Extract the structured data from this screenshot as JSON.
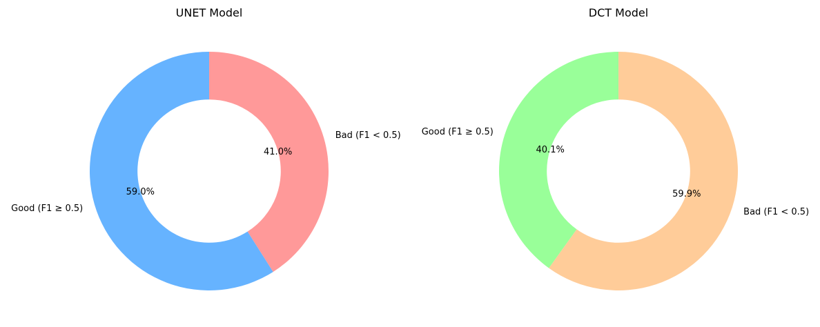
{
  "chart_data": [
    {
      "type": "pie",
      "variant": "donut",
      "title": "UNET Model",
      "start_angle_deg": 90,
      "direction": "clockwise",
      "slices": [
        {
          "label": "Bad (F1 < 0.5)",
          "value": 41.0,
          "pct_label": "41.0%",
          "color": "#ff9999"
        },
        {
          "label": "Good (F1 ≥ 0.5)",
          "value": 59.0,
          "pct_label": "59.0%",
          "color": "#66b3ff"
        }
      ]
    },
    {
      "type": "pie",
      "variant": "donut",
      "title": "DCT Model",
      "start_angle_deg": 90,
      "direction": "clockwise",
      "slices": [
        {
          "label": "Bad (F1 < 0.5)",
          "value": 59.9,
          "pct_label": "59.9%",
          "color": "#ffcc99"
        },
        {
          "label": "Good (F1 ≥ 0.5)",
          "value": 40.1,
          "pct_label": "40.1%",
          "color": "#99ff99"
        }
      ]
    }
  ]
}
